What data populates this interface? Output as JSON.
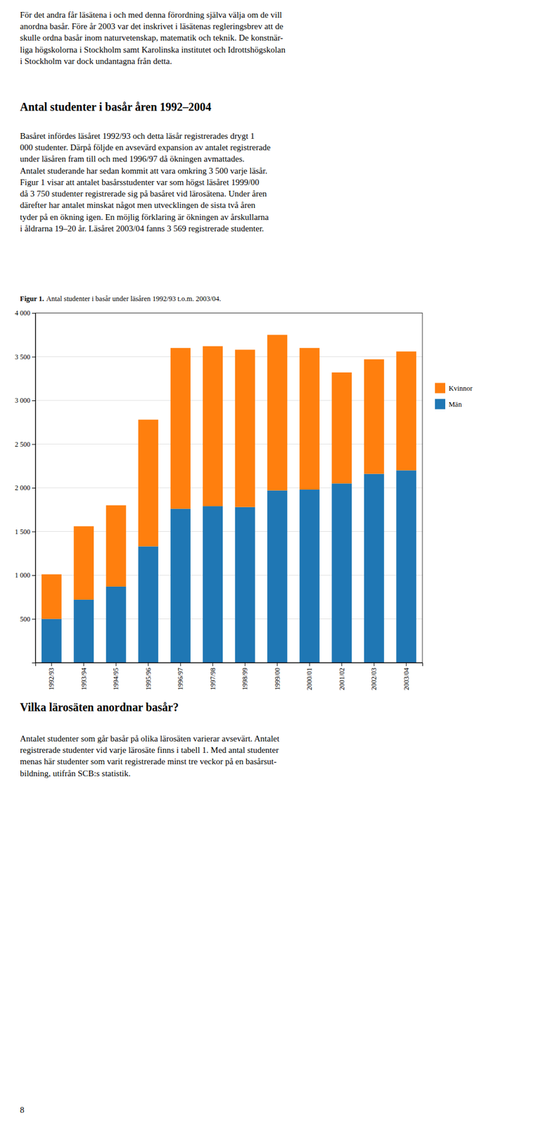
{
  "page": {
    "text1": [
      "För det andra får läsätena i och med denna förordning själva välja om de vill",
      "anordna basår. Före år 2003 var det inskrivet i läsätenas regleringsbrev att de",
      "skulle ordna basår inom naturvetenskap, matematik och teknik. De konstnär-",
      "liga högskolorna i Stockholm samt Karolinska institutet och Idrottshögskolan",
      "i Stockholm var dock undantagna från detta."
    ],
    "heading1": "Antal studenter i basår åren 1992–2004",
    "text2": [
      "Basåret infördes läsåret 1992/93 och detta läsår registrerades drygt 1",
      "000 studenter. Därpå följde en avsevärd expansion av antalet registrerade",
      "under läsåren fram till och med 1996/97 då ökningen avmattades.",
      "Antalet studerande har sedan kommit att vara omkring 3 500 varje läsår.",
      "Figur 1 visar att antalet basårsstudenter var som högst läsåret 1999/00",
      "då 3 750 studenter registrerade sig på basåret vid lärosätena. Under åren",
      "därefter har antalet minskat något men utvecklingen de sista två åren",
      "tyder på en ökning igen. En möjlig förklaring är ökningen av årskullarna",
      "i åldrarna 19–20 år. Läsåret 2003/04 fanns 3 569 registrerade studenter."
    ],
    "heading2": "Vilka lärosäten anordnar basår?",
    "text3": [
      "Antalet studenter som går basår på olika lärosäten varierar avsevärt. Antalet",
      "registrerade studenter vid varje lärosäte finns i tabell 1. Med antal studenter",
      "menas här studenter som varit registrerade minst tre veckor på en basårsut-",
      "bildning, utifrån SCB:s statistik."
    ],
    "page_number": "8"
  },
  "chart_data": {
    "type": "bar",
    "stacked": true,
    "title": "Figur 1.",
    "subtitle": "Antal studenter i basår under läsåren 1992/93 t.o.m. 2003/04.",
    "categories": [
      "1992/93",
      "1993/94",
      "1994/95",
      "1995/96",
      "1996/97",
      "1997/98",
      "1998/99",
      "1999/00",
      "2000/01",
      "2001/02",
      "2002/03",
      "2003/04"
    ],
    "series": [
      {
        "name": "Män",
        "values": [
          500,
          720,
          870,
          1330,
          1760,
          1790,
          1780,
          1970,
          1980,
          2050,
          2160,
          2200
        ]
      },
      {
        "name": "Kvinnor",
        "values": [
          510,
          840,
          930,
          1450,
          1840,
          1830,
          1800,
          1780,
          1620,
          1270,
          1310,
          1360
        ]
      }
    ],
    "ylim": [
      0,
      4000
    ],
    "yticks": [
      500,
      {
        "value": 1000,
        "label": "1 000"
      },
      {
        "value": 1500,
        "label": "1 500"
      },
      {
        "value": 2000,
        "label": "2 000"
      },
      {
        "value": 2500,
        "label": "2 500"
      },
      {
        "value": 3000,
        "label": "3 000"
      },
      {
        "value": 3500,
        "label": "3 500"
      },
      {
        "value": 4000,
        "label": "4 000"
      }
    ],
    "grid": true,
    "legend": "right"
  }
}
